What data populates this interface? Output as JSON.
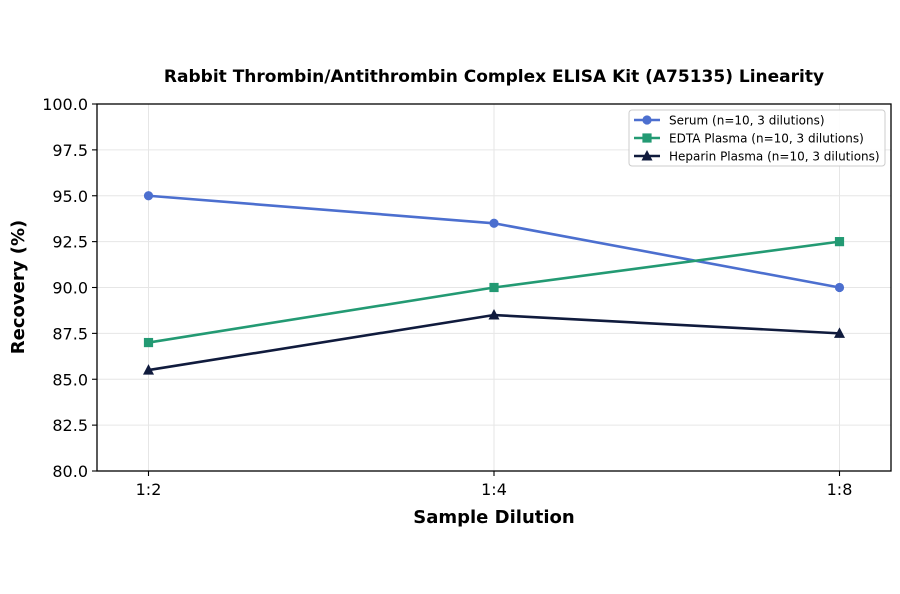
{
  "chart_data": {
    "type": "line",
    "title": "Rabbit Thrombin/Antithrombin Complex ELISA Kit (A75135) Linearity",
    "xlabel": "Sample Dilution",
    "ylabel": "Recovery (%)",
    "categories": [
      "1:2",
      "1:4",
      "1:8"
    ],
    "ylim": [
      80.0,
      100.0
    ],
    "yticks": [
      "80.0",
      "82.5",
      "85.0",
      "87.5",
      "90.0",
      "92.5",
      "95.0",
      "97.5",
      "100.0"
    ],
    "grid": true,
    "legend_position": "top-right",
    "series": [
      {
        "name": "Serum (n=10, 3 dilutions)",
        "values": [
          95.0,
          93.5,
          90.0
        ],
        "color": "#4c6fcf",
        "marker": "circle"
      },
      {
        "name": "EDTA Plasma (n=10, 3 dilutions)",
        "values": [
          87.0,
          90.0,
          92.5
        ],
        "color": "#239a73",
        "marker": "square"
      },
      {
        "name": "Heparin Plasma (n=10, 3 dilutions)",
        "values": [
          85.5,
          88.5,
          87.5
        ],
        "color": "#101b3d",
        "marker": "triangle"
      }
    ]
  }
}
